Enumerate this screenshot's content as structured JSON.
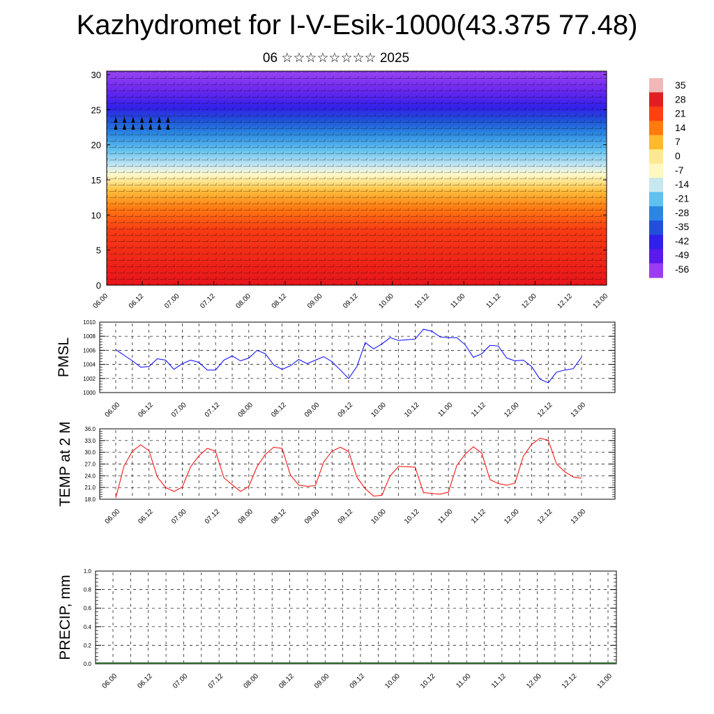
{
  "title": "Kazhydromet for I-V-Esik-1000(43.375 77.48)",
  "subtitle": "06 ☆☆☆☆☆☆☆☆ 2025",
  "time_labels": [
    "06.00",
    "06.12",
    "07.00",
    "07.12",
    "08.00",
    "08.12",
    "09.00",
    "09.12",
    "10.00",
    "10.12",
    "11.00",
    "11.12",
    "12.00",
    "12.12",
    "13.00"
  ],
  "chart_data": [
    {
      "type": "heatmap",
      "y_ticks": [
        0,
        5,
        10,
        15,
        20,
        25,
        30
      ],
      "ylim": [
        0,
        30.5
      ],
      "colorbar_labels": [
        "35",
        "28",
        "21",
        "14",
        "7",
        "0",
        "-7",
        "-14",
        "-21",
        "-28",
        "-35",
        "-42",
        "-49",
        "-56"
      ],
      "colorbar_colors": [
        "#f0b8b8",
        "#e02020",
        "#ff4010",
        "#ff7a10",
        "#ffb830",
        "#ffe890",
        "#fff8c0",
        "#c8e8f0",
        "#60c0ef",
        "#2a86e0",
        "#2050d8",
        "#3020e8",
        "#5a1ae8",
        "#9b3cf0"
      ]
    },
    {
      "type": "line",
      "ylabel": "PMSL",
      "ylim": [
        1000,
        1010
      ],
      "y_ticks": [
        "1000",
        "1002",
        "1004",
        "1006",
        "1008",
        "1010"
      ],
      "color": "#0000ff",
      "x": [
        0,
        3,
        6,
        9,
        12,
        15,
        18,
        21,
        24,
        27,
        30,
        33,
        36,
        39,
        42,
        45,
        48,
        51,
        54,
        57,
        60,
        63,
        66,
        69,
        72,
        75,
        78,
        81,
        84,
        87,
        90,
        93,
        96,
        99,
        102,
        105,
        108,
        111,
        114,
        117,
        120,
        123,
        126,
        129,
        132,
        135,
        138,
        141,
        144,
        147,
        150,
        153,
        156,
        159,
        162,
        165,
        168
      ],
      "values": [
        1006.1,
        1005.3,
        1004.5,
        1003.6,
        1003.7,
        1004.8,
        1004.6,
        1003.3,
        1004.1,
        1004.6,
        1004.3,
        1003.2,
        1003.2,
        1004.6,
        1005.2,
        1004.5,
        1004.9,
        1006.0,
        1005.5,
        1003.9,
        1003.3,
        1003.8,
        1004.7,
        1004.1,
        1004.6,
        1005.1,
        1004.4,
        1003.2,
        1002.0,
        1003.7,
        1007.1,
        1006.2,
        1006.9,
        1007.8,
        1007.4,
        1007.5,
        1007.6,
        1009.0,
        1008.7,
        1007.9,
        1007.8,
        1007.8,
        1006.8,
        1005.0,
        1005.5,
        1006.7,
        1006.6,
        1004.9,
        1004.5,
        1004.6,
        1003.7,
        1001.9,
        1001.4,
        1002.9,
        1003.2,
        1003.4,
        1005.0
      ]
    },
    {
      "type": "line",
      "ylabel": "TEMP at 2 M",
      "ylim": [
        18.0,
        36.0
      ],
      "y_ticks": [
        "18.0",
        "21.0",
        "24.0",
        "27.0",
        "30.0",
        "33.0",
        "36.0"
      ],
      "color": "#ff0000",
      "x": [
        0,
        3,
        6,
        9,
        12,
        15,
        18,
        21,
        24,
        27,
        30,
        33,
        36,
        39,
        42,
        45,
        48,
        51,
        54,
        57,
        60,
        63,
        66,
        69,
        72,
        75,
        78,
        81,
        84,
        87,
        90,
        93,
        96,
        99,
        102,
        105,
        108,
        111,
        114,
        117,
        120,
        123,
        126,
        129,
        132,
        135,
        138,
        141,
        144,
        147,
        150,
        153,
        156,
        159,
        162,
        165,
        168
      ],
      "values": [
        18.3,
        26.5,
        30.3,
        31.9,
        30.4,
        23.7,
        21.0,
        20.0,
        21.1,
        26.3,
        29.1,
        31.0,
        30.3,
        23.5,
        21.7,
        20.0,
        21.3,
        26.4,
        29.5,
        31.3,
        31.0,
        24.2,
        21.6,
        21.3,
        21.5,
        27.5,
        30.3,
        31.3,
        30.2,
        23.6,
        20.7,
        18.8,
        19.0,
        24.0,
        26.4,
        26.3,
        26.2,
        19.7,
        19.5,
        19.3,
        19.8,
        26.6,
        29.5,
        31.4,
        29.8,
        23.0,
        22.0,
        21.6,
        22.1,
        29.0,
        32.0,
        33.6,
        33.1,
        27.0,
        25.0,
        23.7,
        23.4
      ]
    },
    {
      "type": "bar",
      "ylabel": "PRECIP, mm",
      "ylim": [
        0.0,
        1.0
      ],
      "y_ticks": [
        "0.0",
        "0.2",
        "0.4",
        "0.6",
        "0.8",
        "1.0"
      ],
      "values": [
        0
      ]
    }
  ]
}
